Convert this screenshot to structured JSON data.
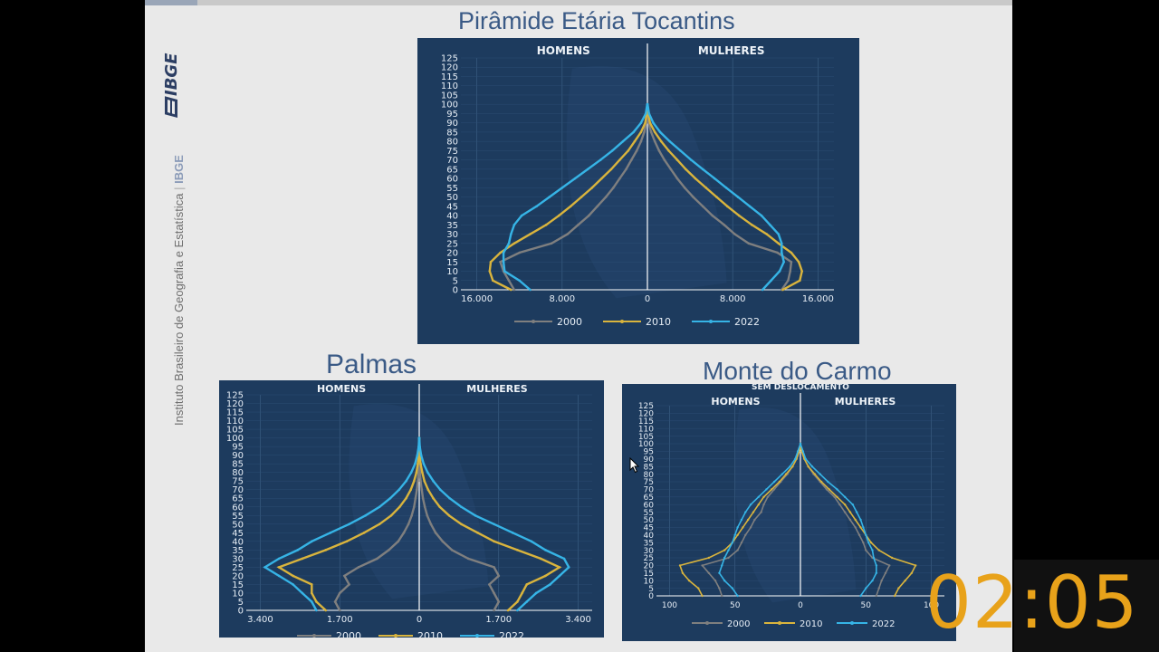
{
  "side_text": {
    "institute": "Instituto Brasileiro de Geografia e Estatística",
    "short": "IBGE",
    "logo": "IBGE"
  },
  "timer": "02:05",
  "colors": {
    "c2000": "#7f7f7f",
    "c2010": "#d9b43d",
    "c2022": "#36b4e6",
    "bg": "#1d3b5e",
    "title": "#3a5a86"
  },
  "chart_data": [
    {
      "type": "line",
      "id": "tocantins",
      "title": "Pirâmide Etária Tocantins",
      "subtitle": "",
      "left_label": "HOMENS",
      "right_label": "MULHERES",
      "y_ticks": [
        "0",
        "5",
        "10",
        "15",
        "20",
        "25",
        "30",
        "35",
        "40",
        "45",
        "50",
        "55",
        "60",
        "65",
        "70",
        "75",
        "80",
        "85",
        "90",
        "95",
        "100",
        "105",
        "110",
        "115",
        "120",
        "125"
      ],
      "x_ticks": [
        "16.000",
        "8.000",
        "0",
        "8.000",
        "16.000"
      ],
      "x_tick_values": [
        -16000,
        -8000,
        0,
        8000,
        16000
      ],
      "xlim": [
        -17500,
        17500
      ],
      "ylim": [
        0,
        125
      ],
      "legend_position": "bottom",
      "age": [
        0,
        5,
        10,
        15,
        20,
        25,
        30,
        35,
        40,
        45,
        50,
        55,
        60,
        65,
        70,
        75,
        80,
        85,
        90,
        95,
        100
      ],
      "series": [
        {
          "name": "2000",
          "color_key": "c2000",
          "men": [
            12500,
            13000,
            13500,
            13800,
            12000,
            9000,
            7500,
            6500,
            5500,
            4700,
            3900,
            3200,
            2600,
            2000,
            1500,
            1000,
            600,
            300,
            100,
            30,
            0
          ],
          "women": [
            12600,
            13200,
            13400,
            13500,
            12200,
            9500,
            8200,
            7200,
            6100,
            5200,
            4300,
            3500,
            2800,
            2200,
            1600,
            1100,
            700,
            350,
            120,
            40,
            0
          ]
        },
        {
          "name": "2010",
          "color_key": "c2010",
          "men": [
            12800,
            14500,
            14800,
            14700,
            13800,
            12500,
            11000,
            9500,
            8300,
            7200,
            6200,
            5200,
            4300,
            3400,
            2600,
            1800,
            1200,
            600,
            200,
            60,
            0
          ],
          "women": [
            12700,
            14300,
            14500,
            14200,
            13500,
            12300,
            11200,
            9800,
            8600,
            7500,
            6500,
            5500,
            4500,
            3600,
            2800,
            2000,
            1300,
            700,
            250,
            70,
            0
          ]
        },
        {
          "name": "2022",
          "color_key": "c2022",
          "men": [
            11000,
            12000,
            13400,
            13500,
            13500,
            13000,
            12800,
            12500,
            11800,
            10400,
            9200,
            8000,
            6800,
            5600,
            4400,
            3300,
            2300,
            1300,
            600,
            150,
            20
          ],
          "women": [
            10800,
            11600,
            12400,
            12800,
            12600,
            12600,
            12300,
            11500,
            10700,
            9600,
            8500,
            7400,
            6300,
            5200,
            4100,
            3100,
            2100,
            1200,
            550,
            150,
            20
          ]
        }
      ]
    },
    {
      "type": "line",
      "id": "palmas",
      "title": "Palmas",
      "subtitle": "",
      "left_label": "HOMENS",
      "right_label": "MULHERES",
      "y_ticks": [
        "0",
        "5",
        "10",
        "15",
        "20",
        "25",
        "30",
        "35",
        "40",
        "45",
        "50",
        "55",
        "60",
        "65",
        "70",
        "75",
        "80",
        "85",
        "90",
        "95",
        "100",
        "105",
        "110",
        "115",
        "120",
        "125"
      ],
      "x_ticks": [
        "3.400",
        "1.700",
        "0",
        "1.700",
        "3.400"
      ],
      "x_tick_values": [
        -3400,
        -1700,
        0,
        1700,
        3400
      ],
      "xlim": [
        -3700,
        3700
      ],
      "ylim": [
        0,
        125
      ],
      "legend_position": "bottom",
      "age": [
        0,
        5,
        10,
        15,
        20,
        25,
        30,
        35,
        40,
        45,
        50,
        55,
        60,
        65,
        70,
        75,
        80,
        85,
        90,
        95,
        100
      ],
      "series": [
        {
          "name": "2000",
          "color_key": "c2000",
          "men": [
            1700,
            1800,
            1700,
            1500,
            1600,
            1300,
            900,
            650,
            450,
            330,
            230,
            160,
            110,
            80,
            50,
            30,
            15,
            8,
            3,
            1,
            0
          ],
          "women": [
            1600,
            1700,
            1600,
            1500,
            1700,
            1600,
            1050,
            700,
            500,
            350,
            250,
            170,
            120,
            80,
            55,
            30,
            15,
            8,
            3,
            1,
            0
          ]
        },
        {
          "name": "2010",
          "color_key": "c2010",
          "men": [
            2000,
            2200,
            2300,
            2300,
            2700,
            3000,
            2500,
            2000,
            1550,
            1180,
            850,
            600,
            420,
            280,
            180,
            110,
            60,
            30,
            10,
            3,
            0
          ],
          "women": [
            1900,
            2100,
            2200,
            2300,
            2700,
            3000,
            2600,
            2100,
            1600,
            1250,
            900,
            640,
            440,
            300,
            190,
            110,
            65,
            30,
            10,
            3,
            0
          ]
        },
        {
          "name": "2022",
          "color_key": "c2022",
          "men": [
            2200,
            2300,
            2500,
            2700,
            3000,
            3300,
            3000,
            2600,
            2300,
            1900,
            1500,
            1150,
            850,
            620,
            430,
            280,
            170,
            90,
            40,
            12,
            2
          ],
          "women": [
            2100,
            2300,
            2500,
            2800,
            3000,
            3200,
            3100,
            2700,
            2400,
            2000,
            1600,
            1200,
            900,
            650,
            450,
            300,
            180,
            95,
            40,
            12,
            2
          ]
        }
      ]
    },
    {
      "type": "line",
      "id": "monte_do_carmo",
      "title": "Monte do Carmo",
      "subtitle": "SEM DESLOCAMENTO",
      "left_label": "HOMENS",
      "right_label": "MULHERES",
      "y_ticks": [
        "0",
        "5",
        "10",
        "15",
        "20",
        "25",
        "30",
        "35",
        "40",
        "45",
        "50",
        "55",
        "60",
        "65",
        "70",
        "75",
        "80",
        "85",
        "90",
        "95",
        "100",
        "105",
        "110",
        "115",
        "120",
        "125"
      ],
      "x_ticks": [
        "100",
        "50",
        "0",
        "50",
        "100"
      ],
      "x_tick_values": [
        -100,
        -50,
        0,
        50,
        100
      ],
      "xlim": [
        -110,
        110
      ],
      "ylim": [
        0,
        125
      ],
      "legend_position": "bottom",
      "age": [
        0,
        5,
        10,
        15,
        20,
        25,
        30,
        35,
        40,
        45,
        50,
        55,
        60,
        65,
        70,
        75,
        80,
        85,
        90,
        95,
        100
      ],
      "series": [
        {
          "name": "2000",
          "color_key": "c2000",
          "men": [
            60,
            62,
            65,
            70,
            75,
            55,
            48,
            45,
            42,
            38,
            35,
            30,
            28,
            25,
            20,
            15,
            10,
            6,
            3,
            1,
            0
          ],
          "women": [
            58,
            60,
            62,
            65,
            68,
            55,
            50,
            48,
            45,
            42,
            38,
            34,
            30,
            26,
            20,
            15,
            10,
            6,
            3,
            1,
            0
          ]
        },
        {
          "name": "2010",
          "color_key": "c2010",
          "men": [
            75,
            78,
            85,
            90,
            92,
            70,
            58,
            52,
            48,
            44,
            40,
            36,
            32,
            28,
            22,
            16,
            11,
            6,
            3,
            1,
            0
          ],
          "women": [
            72,
            75,
            80,
            85,
            88,
            70,
            60,
            54,
            50,
            46,
            42,
            38,
            34,
            28,
            22,
            16,
            11,
            6,
            3,
            1,
            0
          ]
        },
        {
          "name": "2022",
          "color_key": "c2022",
          "men": [
            48,
            52,
            58,
            62,
            60,
            58,
            55,
            52,
            50,
            48,
            45,
            42,
            38,
            32,
            26,
            20,
            14,
            8,
            4,
            2,
            0
          ],
          "women": [
            46,
            50,
            55,
            58,
            58,
            56,
            55,
            52,
            50,
            48,
            46,
            43,
            40,
            34,
            28,
            21,
            15,
            9,
            4,
            2,
            0
          ]
        }
      ]
    }
  ]
}
